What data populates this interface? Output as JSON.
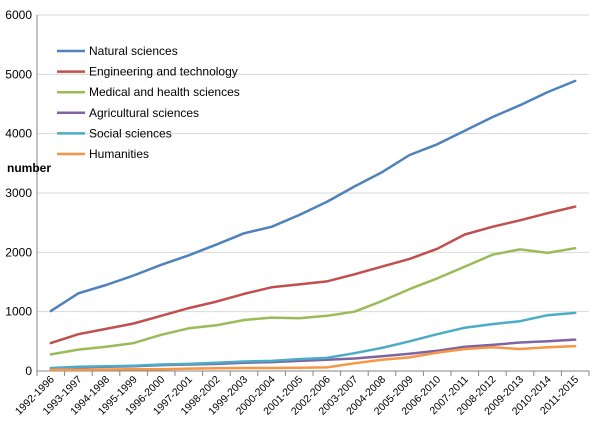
{
  "chart_data": {
    "type": "line",
    "ylabel": "number",
    "xlabel": "",
    "title": "",
    "ylim": [
      0,
      6000
    ],
    "yticks": [
      0,
      1000,
      2000,
      3000,
      4000,
      5000,
      6000
    ],
    "grid": "horizontal",
    "legend_position": "top-left inside",
    "categories": [
      "1992-1996",
      "1993-1997",
      "1994-1998",
      "1995-1999",
      "1996-2000",
      "1997-2001",
      "1998-2002",
      "1999-2003",
      "2000-2004",
      "2001-2005",
      "2002-2006",
      "2003-2007",
      "2004-2008",
      "2005-2009",
      "2006-2010",
      "2007-2011",
      "2008-2012",
      "2009-2013",
      "2010-2014",
      "2011-2015"
    ],
    "series": [
      {
        "name": "Natural sciences",
        "color": "#4F81BD",
        "values": [
          1010,
          1310,
          1450,
          1610,
          1790,
          1950,
          2130,
          2320,
          2430,
          2630,
          2850,
          3110,
          3350,
          3640,
          3820,
          4050,
          4280,
          4480,
          4700,
          4890
        ]
      },
      {
        "name": "Engineering and technology",
        "color": "#C0504D",
        "values": [
          470,
          620,
          710,
          800,
          930,
          1060,
          1170,
          1300,
          1410,
          1460,
          1510,
          1630,
          1760,
          1890,
          2060,
          2300,
          2430,
          2540,
          2660,
          2770
        ]
      },
      {
        "name": "Medical and health sciences",
        "color": "#9BBB59",
        "values": [
          280,
          360,
          410,
          470,
          610,
          720,
          770,
          860,
          900,
          890,
          930,
          1000,
          1180,
          1380,
          1560,
          1760,
          1960,
          2050,
          1990,
          2070
        ]
      },
      {
        "name": "Agricultural sciences",
        "color": "#8064A2",
        "values": [
          40,
          60,
          70,
          80,
          100,
          110,
          120,
          140,
          150,
          170,
          190,
          210,
          250,
          290,
          340,
          410,
          440,
          480,
          500,
          530
        ]
      },
      {
        "name": "Social sciences",
        "color": "#4BACC6",
        "values": [
          50,
          70,
          80,
          90,
          110,
          120,
          140,
          160,
          170,
          200,
          220,
          300,
          390,
          500,
          620,
          730,
          790,
          840,
          940,
          980
        ]
      },
      {
        "name": "Humanities",
        "color": "#F79646",
        "values": [
          20,
          20,
          25,
          30,
          30,
          40,
          45,
          50,
          50,
          55,
          60,
          130,
          190,
          230,
          310,
          370,
          400,
          370,
          400,
          420
        ]
      }
    ]
  }
}
